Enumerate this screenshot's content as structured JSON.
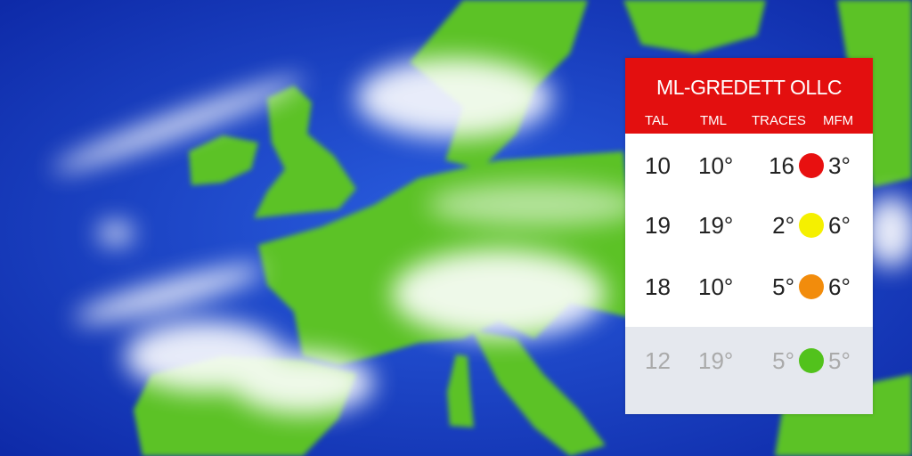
{
  "map": {
    "sea_color": "#1a3fc0",
    "land_color": "#5cc228",
    "cloud_color": "#ffffff"
  },
  "panel": {
    "title": "ML-GREDETT OLLC",
    "header_color": "#e30f0f",
    "columns": [
      "TAL",
      "TML",
      "TRACES",
      "MFM"
    ],
    "rows": [
      {
        "tal": "10",
        "tml": "10°",
        "traces": "16",
        "dot_color": "#e81010",
        "mfm": "3°"
      },
      {
        "tal": "19",
        "tml": "19°",
        "traces": "2°",
        "dot_color": "#f5f000",
        "mfm": "6°"
      },
      {
        "tal": "18",
        "tml": "10°",
        "traces": "5°",
        "dot_color": "#f28c0c",
        "mfm": "6°"
      },
      {
        "tal": "12",
        "tml": "19°",
        "traces": "5°",
        "dot_color": "#52c21c",
        "mfm": "5°"
      }
    ]
  }
}
